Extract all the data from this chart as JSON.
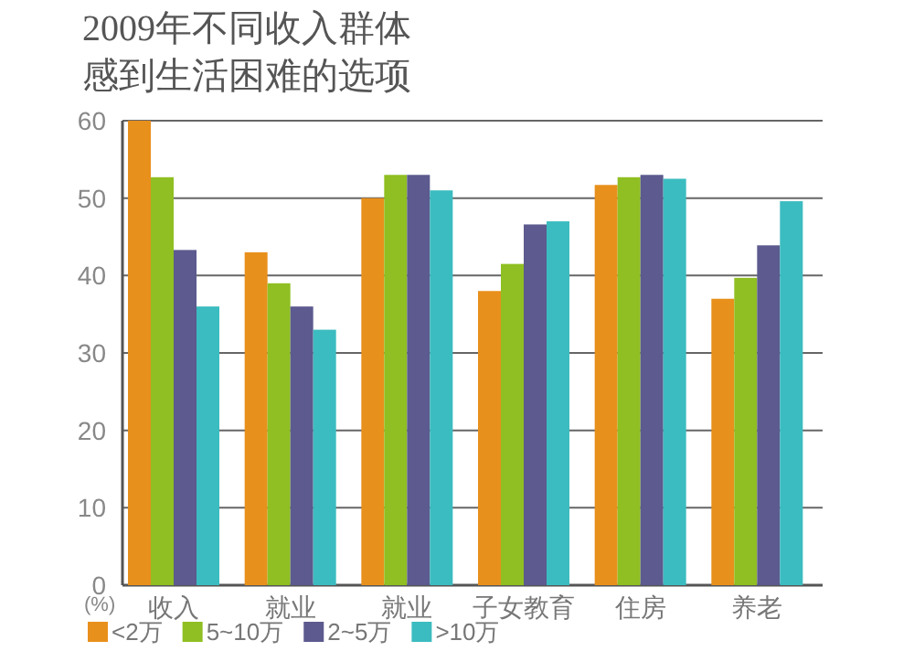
{
  "chart_data": {
    "type": "bar",
    "title": "2009年不同收入群体感到生活困难的选项",
    "ylabel": "(%)",
    "categories": [
      "收入",
      "就业",
      "就业",
      "子女教育",
      "住房",
      "养老"
    ],
    "series": [
      {
        "name": "<2万",
        "color": "#e8901c",
        "values": [
          60,
          43,
          50,
          38,
          51.7,
          37
        ]
      },
      {
        "name": "5~10万",
        "color": "#8fbf22",
        "values": [
          52.7,
          39,
          53,
          41.5,
          52.7,
          39.7
        ]
      },
      {
        "name": "2~5万",
        "color": "#5c5a8e",
        "values": [
          43.3,
          36,
          53,
          46.6,
          53,
          43.9
        ]
      },
      {
        "name": ">10万",
        "color": "#3bbcc0",
        "values": [
          36,
          33,
          51,
          47,
          52.5,
          49.6
        ]
      }
    ],
    "ylim": [
      0,
      60
    ],
    "yticks": [
      0,
      10,
      20,
      30,
      40,
      50,
      60
    ],
    "grid": "y",
    "legend": "bottom"
  }
}
